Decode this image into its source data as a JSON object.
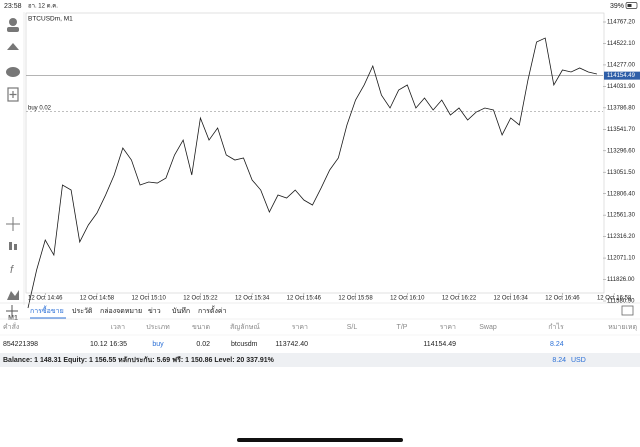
{
  "status_bar": {
    "time": "23:58",
    "date": "อา. 12 ต.ค.",
    "battery": "39%"
  },
  "left_toolbar": {
    "timeframe": "M1"
  },
  "chart_data": {
    "type": "line",
    "title": "BTCUSDm, M1",
    "color": "#1a1a1a",
    "grid": false,
    "categories": [
      null,
      null,
      "12 Oct 14:46",
      null,
      null,
      null,
      null,
      null,
      "12 Oct 14:58",
      null,
      null,
      null,
      null,
      null,
      "12 Oct 15:10",
      null,
      null,
      null,
      null,
      null,
      "12 Oct 15:22",
      null,
      null,
      null,
      null,
      null,
      "12 Oct 15:34",
      null,
      null,
      null,
      null,
      null,
      "12 Oct 15:46",
      null,
      null,
      null,
      null,
      null,
      "12 Oct 15:58",
      null,
      null,
      null,
      null,
      null,
      "12 Oct 16:10",
      null,
      null,
      null,
      null,
      null,
      "12 Oct 16:22",
      null,
      null,
      null,
      null,
      null,
      "12 Oct 16:34",
      null,
      null,
      null,
      null,
      null,
      "12 Oct 16:46",
      null,
      null,
      null,
      null,
      null,
      "12 Oct 16:58",
      null
    ],
    "values": [
      111501,
      111935,
      112277,
      112106,
      112906,
      112848,
      112255,
      112449,
      112586,
      112791,
      113020,
      113328,
      113191,
      112906,
      112940,
      112928,
      112985,
      113248,
      113419,
      113020,
      113671,
      113419,
      113556,
      113248,
      113191,
      113214,
      112963,
      112848,
      112597,
      112791,
      112757,
      112848,
      112734,
      112677,
      112871,
      113077,
      113214,
      113591,
      113876,
      114048,
      114265,
      113933,
      113785,
      113990,
      114048,
      113785,
      113899,
      113762,
      113876,
      113705,
      113785,
      113648,
      113739,
      113785,
      113762,
      113477,
      113671,
      113591,
      114105,
      114539,
      114584,
      114048,
      114219,
      114196,
      114242,
      114196,
      114173,
      null,
      null,
      null
    ],
    "ylim": [
      111580.9,
      114767.2
    ],
    "yticks": [
      {
        "value": 111580.9,
        "label": "111580.90"
      },
      {
        "value": 111826,
        "label": "111826.00"
      },
      {
        "value": 112071.1,
        "label": "112071.10"
      },
      {
        "value": 112316.2,
        "label": "112316.20"
      },
      {
        "value": 112561.3,
        "label": "112561.30"
      },
      {
        "value": 112806.4,
        "label": "112806.40"
      },
      {
        "value": 113051.5,
        "label": "113051.50"
      },
      {
        "value": 113296.6,
        "label": "113296.60"
      },
      {
        "value": 113541.7,
        "label": "113541.70"
      },
      {
        "value": 113786.8,
        "label": "113786.80"
      },
      {
        "value": 114031.9,
        "label": "114031.90"
      },
      {
        "value": 114277,
        "label": "114277.00"
      },
      {
        "value": 114522.1,
        "label": "114522.10"
      },
      {
        "value": 114767.2,
        "label": "114767.20"
      }
    ],
    "price_line": 114154.49,
    "buy_line": {
      "value": 113742.4,
      "label": "buy 0.02"
    }
  },
  "tabs": [
    "การซื้อขาย",
    "ประวัติ",
    "กล่องจดหมาย",
    "ข่าว",
    "บันทึก",
    "การตั้งค่า"
  ],
  "table": {
    "headers": [
      "คำสั่ง",
      "เวลา",
      "ประเภท",
      "ขนาด",
      "สัญลักษณ์",
      "ราคา",
      "S/L",
      "T/P",
      "ราคา",
      "Swap",
      "กำไร",
      "หมายเหตุ"
    ],
    "rows": [
      {
        "order": "854221398",
        "time": "10.12 16:35",
        "type": "buy",
        "size": "0.02",
        "symbol": "btcusdm",
        "open_price": "113742.40",
        "price": "114154.49",
        "profit": "8.24"
      }
    ]
  },
  "summary": {
    "text": "Balance: 1 148.31 Equity: 1 156.55 หลักประกัน: 5.69 ฟรี: 1 150.86 Level: 20 337.91%",
    "profit": "8.24",
    "currency": "USD"
  }
}
